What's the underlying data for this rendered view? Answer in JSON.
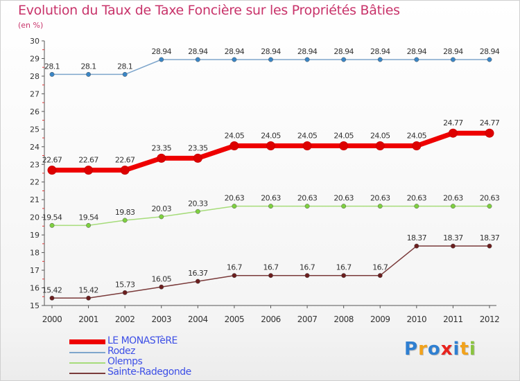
{
  "header": {
    "title": "Evolution du Taux de Taxe Foncière sur les Propriétés Bâties",
    "subtitle": "(en %)"
  },
  "chart_data": {
    "type": "line",
    "title": "Evolution du Taux de Taxe Foncière sur les Propriétés Bâties",
    "ylabel": "(en %)",
    "xlabel": "",
    "ylim": [
      15,
      30
    ],
    "yticks": [
      15,
      16,
      17,
      18,
      19,
      20,
      21,
      22,
      23,
      24,
      25,
      26,
      27,
      28,
      29,
      30
    ],
    "categories": [
      "2000",
      "2001",
      "2002",
      "2003",
      "2004",
      "2005",
      "2006",
      "2007",
      "2008",
      "2009",
      "2010",
      "2011",
      "2012"
    ],
    "grid": false,
    "legend_position": "bottom-left",
    "series": [
      {
        "name": "LE MONASTèRE",
        "color": "#ee0000",
        "marker_fill": "#dd0000",
        "values": [
          22.67,
          22.67,
          22.67,
          23.35,
          23.35,
          24.05,
          24.05,
          24.05,
          24.05,
          24.05,
          24.05,
          24.77,
          24.77
        ],
        "labels": [
          "22.67",
          "22.67",
          "22.67",
          "23.35",
          "23.35",
          "24.05",
          "24.05",
          "24.05",
          "24.05",
          "24.05",
          "24.05",
          "24.77",
          "24.77"
        ]
      },
      {
        "name": "Rodez",
        "color": "#7ea6cc",
        "marker_fill": "#3a86c6",
        "values": [
          28.1,
          28.1,
          28.1,
          28.94,
          28.94,
          28.94,
          28.94,
          28.94,
          28.94,
          28.94,
          28.94,
          28.94,
          28.94
        ],
        "labels": [
          "28.1",
          "28.1",
          "28.1",
          "28.94",
          "28.94",
          "28.94",
          "28.94",
          "28.94",
          "28.94",
          "28.94",
          "28.94",
          "28.94",
          "28.94"
        ]
      },
      {
        "name": "Olemps",
        "color": "#a6dc7a",
        "marker_fill": "#7ed040",
        "values": [
          19.54,
          19.54,
          19.83,
          20.03,
          20.33,
          20.63,
          20.63,
          20.63,
          20.63,
          20.63,
          20.63,
          20.63,
          20.63
        ],
        "labels": [
          "19.54",
          "19.54",
          "19.83",
          "20.03",
          "20.33",
          "20.63",
          "20.63",
          "20.63",
          "20.63",
          "20.63",
          "20.63",
          "20.63",
          "20.63"
        ]
      },
      {
        "name": "Sainte-Radegonde",
        "color": "#7a3a3a",
        "marker_fill": "#6b1e1e",
        "values": [
          15.42,
          15.42,
          15.73,
          16.05,
          16.37,
          16.7,
          16.7,
          16.7,
          16.7,
          16.7,
          18.37,
          18.37,
          18.37
        ],
        "labels": [
          "15.42",
          "15.42",
          "15.73",
          "16.05",
          "16.37",
          "16.7",
          "16.7",
          "16.7",
          "16.7",
          "16.7",
          "18.37",
          "18.37",
          "18.37"
        ]
      }
    ]
  },
  "legend": {
    "items": [
      {
        "label": "LE MONASTèRE",
        "color": "#ee0000"
      },
      {
        "label": "Rodez",
        "color": "#7ea6cc"
      },
      {
        "label": "Olemps",
        "color": "#a6dc7a"
      },
      {
        "label": "Sainte-Radegonde",
        "color": "#7a3a3a"
      }
    ]
  },
  "logo": {
    "text": "Proxiti",
    "letters": [
      {
        "ch": "P",
        "color": "#2f7fd1"
      },
      {
        "ch": "r",
        "color": "#f2a21b"
      },
      {
        "ch": "o",
        "color": "#2f7fd1"
      },
      {
        "ch": "x",
        "color": "#e8231e"
      },
      {
        "ch": "i",
        "color": "#2f7fd1"
      },
      {
        "ch": "t",
        "color": "#f2a21b"
      },
      {
        "ch": "i",
        "color": "#8ac43f"
      }
    ]
  }
}
